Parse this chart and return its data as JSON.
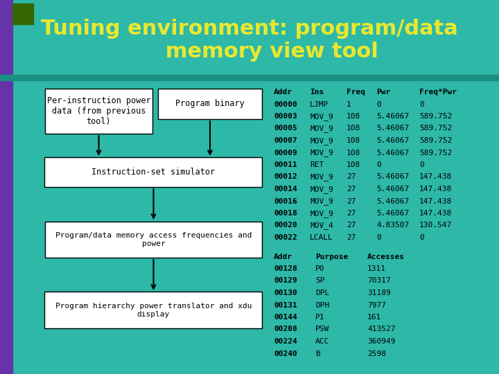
{
  "bg_color": "#2db8a8",
  "title_color": "#e8e830",
  "left_bar_color": "#6633aa",
  "top_bar_color": "#336600",
  "table1_header": [
    "Addr",
    "Ins",
    "Freq",
    "Pwr",
    "Freq*Pwr"
  ],
  "table1_rows": [
    [
      "00000",
      "LJMP",
      "1",
      "0",
      "0"
    ],
    [
      "00003",
      "MOV_9",
      "108",
      "5.46067",
      "589.752"
    ],
    [
      "00005",
      "MOV_9",
      "108",
      "5.46067",
      "589.752"
    ],
    [
      "00007",
      "MOV_9",
      "108",
      "5.46067",
      "589.752"
    ],
    [
      "00009",
      "MOV_9",
      "108",
      "5.46067",
      "589.752"
    ],
    [
      "00011",
      "RET",
      "108",
      "0",
      "0"
    ],
    [
      "00012",
      "MOV_9",
      "27",
      "5.46067",
      "147.438"
    ],
    [
      "00014",
      "MOV_9",
      "27",
      "5.46067",
      "147.438"
    ],
    [
      "00016",
      "MOV_9",
      "27",
      "5.46067",
      "147.438"
    ],
    [
      "00018",
      "MOV_9",
      "27",
      "5.46067",
      "147.438"
    ],
    [
      "00020",
      "MOV_4",
      "27",
      "4.83507",
      "130.547"
    ],
    [
      "00022",
      "LCALL",
      "27",
      "0",
      "0"
    ]
  ],
  "table2_header": [
    "Addr",
    "Purpose",
    "Accesses"
  ],
  "table2_rows": [
    [
      "00128",
      "P0",
      "1311"
    ],
    [
      "00129",
      "SP",
      "70317"
    ],
    [
      "00130",
      "DPL",
      "31189"
    ],
    [
      "00131",
      "DPH",
      "7977"
    ],
    [
      "00144",
      "P1",
      "161"
    ],
    [
      "00208",
      "PSW",
      "413527"
    ],
    [
      "00224",
      "ACC",
      "360949"
    ],
    [
      "00240",
      "B",
      "2598"
    ]
  ]
}
